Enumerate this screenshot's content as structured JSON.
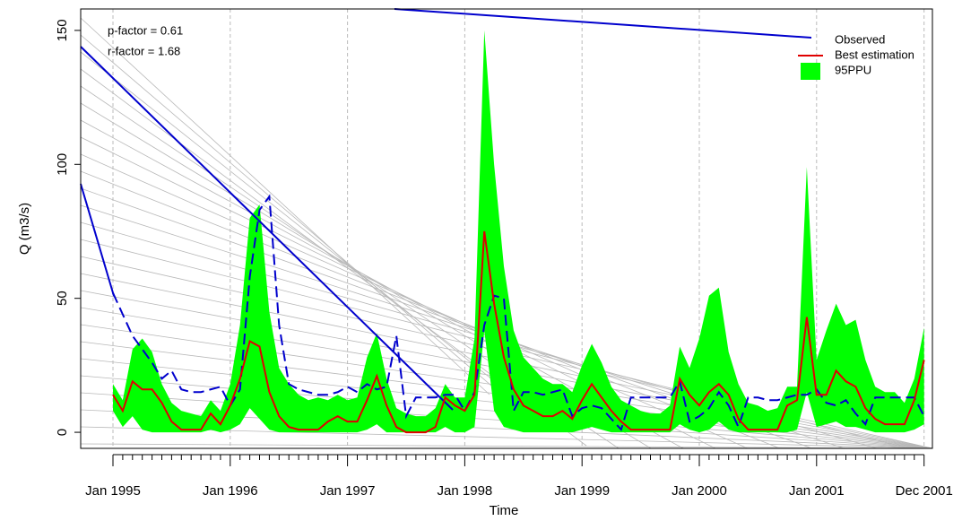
{
  "chart_data": {
    "type": "band-line",
    "xlabel": "Time",
    "ylabel": "Q (m3/s)",
    "annotations": [
      "p-factor = 0.61",
      "r-factor = 1.68"
    ],
    "categories": [
      "Jan 1995",
      null,
      null,
      null,
      null,
      null,
      null,
      null,
      null,
      null,
      null,
      null,
      "Jan 1996",
      null,
      null,
      null,
      null,
      null,
      null,
      null,
      null,
      null,
      null,
      null,
      "Jan 1997",
      null,
      null,
      null,
      null,
      null,
      null,
      null,
      null,
      null,
      null,
      null,
      "Jan 1998",
      null,
      null,
      null,
      null,
      null,
      null,
      null,
      null,
      null,
      null,
      null,
      "Jan 1999",
      null,
      null,
      null,
      null,
      null,
      null,
      null,
      null,
      null,
      null,
      null,
      "Jan 2000",
      null,
      null,
      null,
      null,
      null,
      null,
      null,
      null,
      null,
      null,
      null,
      "Jan 2001",
      null,
      null,
      null,
      null,
      null,
      null,
      null,
      null,
      null,
      null,
      "Dec 2001"
    ],
    "ylim": [
      -6,
      158
    ],
    "yticks": [
      0,
      50,
      100,
      150
    ],
    "grid": true,
    "band": {
      "name": "95PPU",
      "color": "#00ff00",
      "lower": [
        8,
        2,
        6,
        1,
        0,
        0,
        0,
        0,
        0,
        0,
        1,
        0,
        1,
        3,
        9,
        5,
        1,
        0,
        0,
        0,
        0,
        0,
        0,
        0,
        0,
        0,
        1,
        3,
        0,
        0,
        0,
        0,
        0,
        0,
        2,
        0,
        0,
        2,
        38,
        8,
        2,
        1,
        0,
        0,
        0,
        0,
        0,
        0,
        1,
        2,
        1,
        0,
        0,
        0,
        0,
        0,
        0,
        0,
        3,
        1,
        0,
        1,
        4,
        1,
        0,
        0,
        0,
        0,
        0,
        0,
        1,
        15,
        2,
        3,
        4,
        2,
        2,
        1,
        0,
        0,
        0,
        0,
        1,
        3
      ],
      "upper": [
        18,
        12,
        31,
        35,
        30,
        18,
        11,
        8,
        7,
        6,
        12,
        8,
        18,
        40,
        80,
        85,
        45,
        24,
        18,
        14,
        12,
        13,
        12,
        14,
        12,
        13,
        28,
        37,
        20,
        9,
        7,
        6,
        6,
        9,
        18,
        13,
        13,
        35,
        150,
        100,
        62,
        38,
        28,
        24,
        20,
        18,
        18,
        15,
        25,
        33,
        26,
        17,
        12,
        10,
        8,
        7,
        7,
        10,
        32,
        24,
        35,
        51,
        54,
        30,
        18,
        11,
        10,
        8,
        9,
        17,
        17,
        99,
        27,
        38,
        48,
        40,
        42,
        27,
        17,
        15,
        15,
        11,
        20,
        39
      ]
    },
    "series": [
      {
        "name": "Observed",
        "color": "#0000cd",
        "dashed": true,
        "legend_symbol": "none",
        "values": [
          52,
          44,
          36,
          31,
          26,
          20,
          23,
          16,
          15,
          15,
          16,
          17,
          10,
          16,
          58,
          83,
          88,
          40,
          18,
          16,
          15,
          14,
          14,
          15,
          17,
          15,
          18,
          16,
          17,
          36,
          6,
          13,
          13,
          13,
          14,
          14,
          8,
          15,
          40,
          51,
          50,
          8,
          15,
          15,
          14,
          15,
          16,
          6,
          9,
          10,
          9,
          5,
          1,
          13,
          13,
          13,
          13,
          13,
          19,
          4,
          6,
          9,
          15,
          10,
          2,
          13,
          13,
          12,
          12,
          13,
          14,
          14,
          16,
          11,
          10,
          12,
          7,
          3,
          13,
          13,
          13,
          13,
          13,
          6
        ]
      },
      {
        "name": "Best estimation",
        "color": "#e00000",
        "dashed": false,
        "legend_symbol": "line",
        "values": [
          14,
          8,
          19,
          16,
          16,
          11,
          4,
          1,
          1,
          1,
          7,
          3,
          10,
          20,
          34,
          32,
          15,
          6,
          2,
          1,
          1,
          1,
          4,
          6,
          4,
          4,
          12,
          21,
          10,
          2,
          0,
          0,
          0,
          2,
          13,
          10,
          8,
          14,
          75,
          48,
          28,
          16,
          10,
          8,
          6,
          6,
          8,
          5,
          12,
          18,
          13,
          8,
          4,
          1,
          1,
          1,
          1,
          1,
          20,
          14,
          10,
          15,
          18,
          14,
          5,
          1,
          1,
          1,
          1,
          10,
          12,
          43,
          14,
          14,
          23,
          19,
          17,
          9,
          5,
          3,
          3,
          3,
          12,
          27
        ]
      }
    ],
    "legend_position": "top-right"
  }
}
